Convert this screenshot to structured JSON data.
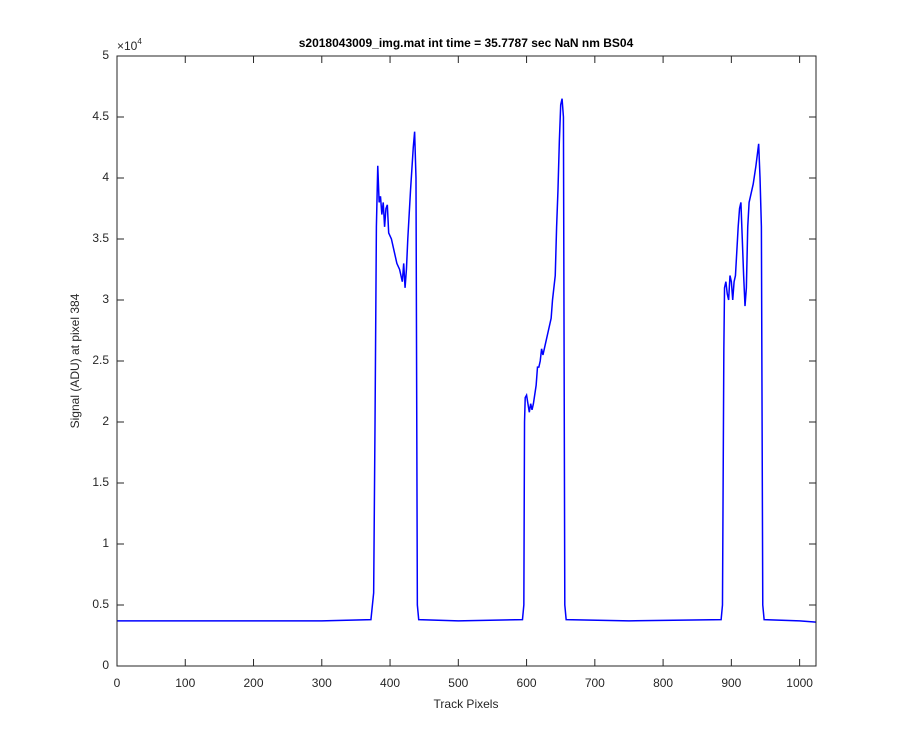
{
  "chart_data": {
    "type": "line",
    "title": "s2018043009_img.mat int time = 35.7787 sec  NaN nm BS04",
    "x_label": "Track Pixels",
    "y_label": "Signal (ADU) at pixel 384",
    "y_multiplier": {
      "base": "×10",
      "exponent": "4"
    },
    "xlim": [
      0,
      1024
    ],
    "ylim": [
      0,
      5
    ],
    "xticks": [
      0,
      100,
      200,
      300,
      400,
      500,
      600,
      700,
      800,
      900,
      1000
    ],
    "yticks": [
      0,
      0.5,
      1,
      1.5,
      2,
      2.5,
      3,
      3.5,
      4,
      4.5,
      5
    ],
    "series": [
      {
        "name": "signal",
        "color": "#0000ff",
        "x": [
          0,
          100,
          200,
          300,
          372,
          376,
          378,
          380,
          382,
          384,
          386,
          388,
          390,
          392,
          394,
          396,
          398,
          402,
          406,
          410,
          414,
          418,
          420,
          422,
          424,
          426,
          430,
          434,
          436,
          438,
          440,
          442,
          500,
          594,
          596,
          597,
          598,
          600,
          602,
          604,
          606,
          608,
          610,
          614,
          616,
          618,
          620,
          622,
          624,
          628,
          632,
          636,
          638,
          642,
          644,
          646,
          648,
          650,
          652,
          654,
          656,
          658,
          750,
          885,
          887,
          889,
          890,
          892,
          894,
          896,
          898,
          900,
          902,
          904,
          906,
          908,
          910,
          912,
          914,
          916,
          918,
          920,
          922,
          924,
          926,
          928,
          932,
          936,
          940,
          942,
          944,
          946,
          948,
          1000,
          1024
        ],
        "values": [
          0.37,
          0.37,
          0.37,
          0.37,
          0.38,
          0.6,
          2.0,
          3.6,
          4.1,
          3.8,
          3.85,
          3.7,
          3.8,
          3.6,
          3.75,
          3.78,
          3.55,
          3.5,
          3.4,
          3.3,
          3.25,
          3.15,
          3.3,
          3.1,
          3.25,
          3.5,
          3.9,
          4.25,
          4.38,
          4.0,
          0.5,
          0.38,
          0.37,
          0.38,
          0.5,
          2.0,
          2.2,
          2.22,
          2.15,
          2.08,
          2.15,
          2.1,
          2.15,
          2.3,
          2.45,
          2.45,
          2.5,
          2.6,
          2.55,
          2.65,
          2.75,
          2.85,
          3.0,
          3.2,
          3.6,
          3.9,
          4.3,
          4.6,
          4.65,
          4.5,
          0.5,
          0.38,
          0.37,
          0.38,
          0.5,
          2.6,
          3.1,
          3.15,
          3.05,
          3.0,
          3.2,
          3.15,
          3.0,
          3.15,
          3.2,
          3.4,
          3.6,
          3.75,
          3.8,
          3.5,
          3.2,
          2.95,
          3.1,
          3.6,
          3.8,
          3.85,
          3.95,
          4.1,
          4.28,
          4.0,
          3.6,
          0.5,
          0.38,
          0.37,
          0.36
        ]
      }
    ]
  }
}
